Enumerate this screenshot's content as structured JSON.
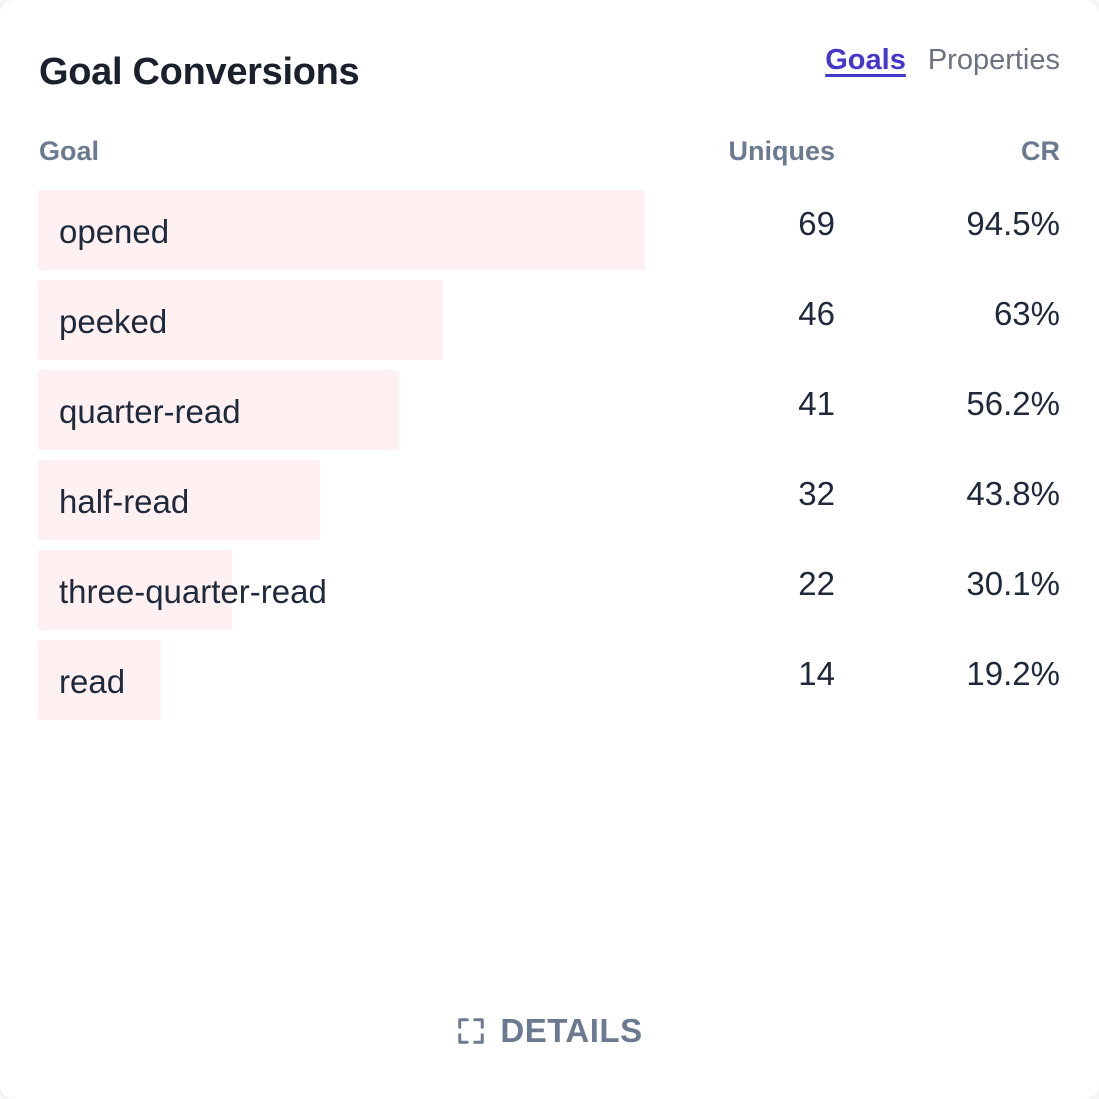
{
  "header": {
    "title": "Goal Conversions",
    "tabs": [
      {
        "label": "Goals",
        "active": true
      },
      {
        "label": "Properties",
        "active": false
      }
    ]
  },
  "table": {
    "columns": {
      "goal": "Goal",
      "uniques": "Uniques",
      "cr": "CR"
    },
    "max_uniques": 69,
    "rows": [
      {
        "goal": "opened",
        "uniques": "69",
        "cr": "94.5%"
      },
      {
        "goal": "peeked",
        "uniques": "46",
        "cr": "63%"
      },
      {
        "goal": "quarter-read",
        "uniques": "41",
        "cr": "56.2%"
      },
      {
        "goal": "half-read",
        "uniques": "32",
        "cr": "43.8%"
      },
      {
        "goal": "three-quarter-read",
        "uniques": "22",
        "cr": "30.1%"
      },
      {
        "goal": "read",
        "uniques": "14",
        "cr": "19.2%"
      }
    ]
  },
  "footer": {
    "details_label": "DETAILS",
    "icon": "expand-icon"
  },
  "colors": {
    "bar": "#fff1f1",
    "active_tab": "#4338ca",
    "muted": "#6b7a90"
  }
}
